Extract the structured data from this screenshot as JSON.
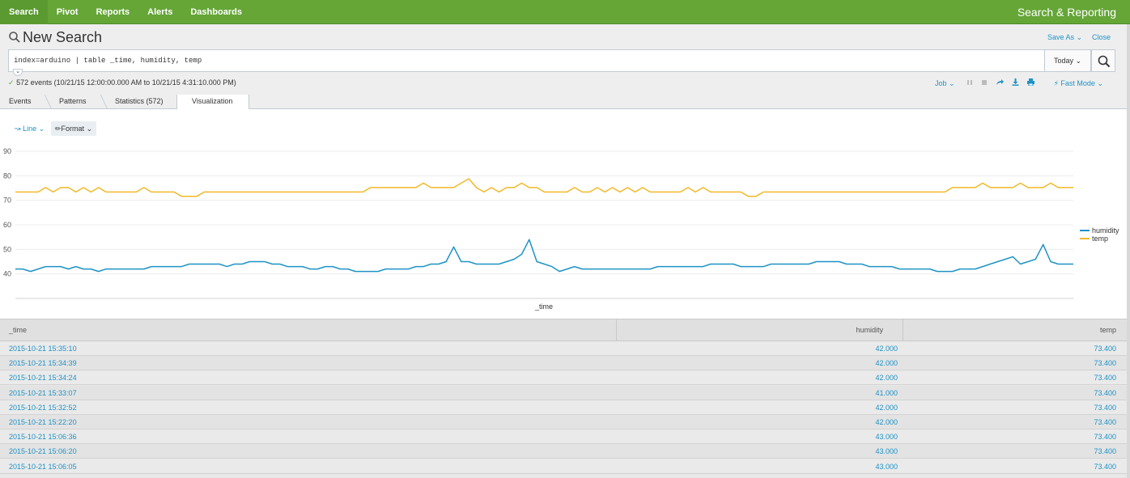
{
  "nav": {
    "items": [
      "Search",
      "Pivot",
      "Reports",
      "Alerts",
      "Dashboards"
    ],
    "active": "Search",
    "app_title": "Search & Reporting"
  },
  "header": {
    "title": "New Search",
    "save_as": "Save As",
    "close": "Close"
  },
  "search": {
    "query": "index=arduino | table _time, humidity, temp",
    "time_range": "Today"
  },
  "status": {
    "events_text": "572 events (10/21/15 12:00:00.000 AM to 10/21/15 4:31:10.000 PM)",
    "job_label": "Job",
    "mode_label": "Fast Mode"
  },
  "tabs": [
    "Events",
    "Patterns",
    "Statistics (572)",
    "Visualization"
  ],
  "active_tab": "Visualization",
  "viz_controls": {
    "chart_type_label": "Line",
    "format_label": "Format"
  },
  "colors": {
    "brand_green": "#65a637",
    "link_blue": "#1e93c6",
    "humidity": "#1e93c6",
    "temp": "#f2b827"
  },
  "chart_data": {
    "type": "line",
    "xlabel": "_time",
    "ylabel": "",
    "ylim": [
      30,
      90
    ],
    "yticks": [
      40,
      50,
      60,
      70,
      80,
      90
    ],
    "legend_position": "right",
    "series": [
      {
        "name": "humidity",
        "values": [
          42,
          42,
          41,
          42,
          43,
          43,
          43,
          42,
          43,
          42,
          42,
          41,
          42,
          42,
          42,
          42,
          42,
          42,
          43,
          43,
          43,
          43,
          43,
          44,
          44,
          44,
          44,
          44,
          43,
          44,
          44,
          45,
          45,
          45,
          44,
          44,
          43,
          43,
          43,
          42,
          42,
          43,
          43,
          42,
          42,
          41,
          41,
          41,
          41,
          42,
          42,
          42,
          42,
          43,
          43,
          44,
          44,
          45,
          51,
          45,
          45,
          44,
          44,
          44,
          44,
          45,
          46,
          48,
          54,
          45,
          44,
          43,
          41,
          42,
          43,
          42,
          42,
          42,
          42,
          42,
          42,
          42,
          42,
          42,
          42,
          43,
          43,
          43,
          43,
          43,
          43,
          43,
          44,
          44,
          44,
          44,
          43,
          43,
          43,
          43,
          44,
          44,
          44,
          44,
          44,
          44,
          45,
          45,
          45,
          45,
          44,
          44,
          44,
          43,
          43,
          43,
          43,
          42,
          42,
          42,
          42,
          42,
          41,
          41,
          41,
          42,
          42,
          42,
          43,
          44,
          45,
          46,
          47,
          44,
          45,
          46,
          52,
          45,
          44,
          44,
          44
        ],
        "x_range_note": ""
      },
      {
        "name": "temp",
        "values": [
          73.4,
          73.4,
          73.4,
          73.4,
          75.2,
          73.4,
          75.2,
          75.2,
          73.4,
          75.2,
          73.4,
          75.2,
          73.4,
          73.4,
          73.4,
          73.4,
          73.4,
          75.2,
          73.4,
          73.4,
          73.4,
          73.4,
          71.6,
          71.6,
          71.6,
          73.4,
          73.4,
          73.4,
          73.4,
          73.4,
          73.4,
          73.4,
          73.4,
          73.4,
          73.4,
          73.4,
          73.4,
          73.4,
          73.4,
          73.4,
          73.4,
          73.4,
          73.4,
          73.4,
          73.4,
          73.4,
          73.4,
          75.2,
          75.2,
          75.2,
          75.2,
          75.2,
          75.2,
          75.2,
          77,
          75.2,
          75.2,
          75.2,
          75.2,
          77,
          78.8,
          75.2,
          73.4,
          75.2,
          73.4,
          75.2,
          75.2,
          77,
          75.2,
          75.2,
          73.4,
          73.4,
          73.4,
          73.4,
          75.2,
          73.4,
          73.4,
          75.2,
          73.4,
          75.2,
          73.4,
          75.2,
          73.4,
          75.2,
          73.4,
          73.4,
          73.4,
          73.4,
          73.4,
          75.2,
          73.4,
          75.2,
          73.4,
          73.4,
          73.4,
          73.4,
          73.4,
          71.6,
          71.6,
          73.4,
          73.4,
          73.4,
          73.4,
          73.4,
          73.4,
          73.4,
          73.4,
          73.4,
          73.4,
          73.4,
          73.4,
          73.4,
          73.4,
          73.4,
          73.4,
          73.4,
          73.4,
          73.4,
          73.4,
          73.4,
          73.4,
          73.4,
          73.4,
          73.4,
          75.2,
          75.2,
          75.2,
          75.2,
          77,
          75.2,
          75.2,
          75.2,
          75.2,
          77,
          75.2,
          75.2,
          75.2,
          77,
          75.2,
          75.2,
          75.2
        ]
      }
    ]
  },
  "table": {
    "columns": [
      "_time",
      "humidity",
      "temp"
    ],
    "rows": [
      [
        "2015-10-21 15:35:10",
        "42.000",
        "73.400"
      ],
      [
        "2015-10-21 15:34:39",
        "42.000",
        "73.400"
      ],
      [
        "2015-10-21 15:34:24",
        "42.000",
        "73.400"
      ],
      [
        "2015-10-21 15:33:07",
        "41.000",
        "73.400"
      ],
      [
        "2015-10-21 15:32:52",
        "42.000",
        "73.400"
      ],
      [
        "2015-10-21 15:22:20",
        "42.000",
        "73.400"
      ],
      [
        "2015-10-21 15:06:36",
        "43.000",
        "73.400"
      ],
      [
        "2015-10-21 15:06:20",
        "43.000",
        "73.400"
      ],
      [
        "2015-10-21 15:06:05",
        "43.000",
        "73.400"
      ]
    ]
  }
}
